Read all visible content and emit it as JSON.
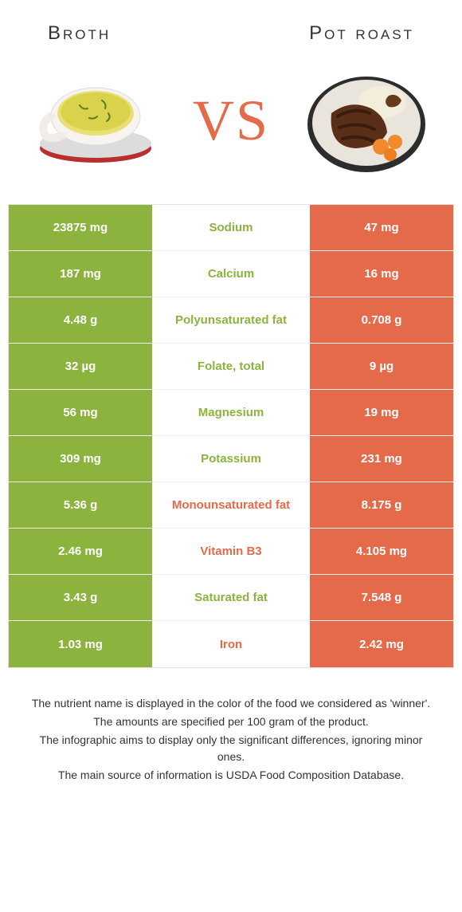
{
  "colors": {
    "left": "#8bb33d",
    "right": "#e46a4a",
    "vs": "#e46a4a",
    "row_border": "#f0f0f0",
    "table_border": "#e3e3e3",
    "text_dark": "#333333"
  },
  "header": {
    "left_title": "Broth",
    "right_title": "Pot roast",
    "vs_label": "VS"
  },
  "nutrients": [
    {
      "label": "Sodium",
      "left": "23875 mg",
      "right": "47 mg",
      "winner": "left"
    },
    {
      "label": "Calcium",
      "left": "187 mg",
      "right": "16 mg",
      "winner": "left"
    },
    {
      "label": "Polyunsaturated fat",
      "left": "4.48 g",
      "right": "0.708 g",
      "winner": "left"
    },
    {
      "label": "Folate, total",
      "left": "32 µg",
      "right": "9 µg",
      "winner": "left"
    },
    {
      "label": "Magnesium",
      "left": "56 mg",
      "right": "19 mg",
      "winner": "left"
    },
    {
      "label": "Potassium",
      "left": "309 mg",
      "right": "231 mg",
      "winner": "left"
    },
    {
      "label": "Monounsaturated fat",
      "left": "5.36 g",
      "right": "8.175 g",
      "winner": "right"
    },
    {
      "label": "Vitamin B3",
      "left": "2.46 mg",
      "right": "4.105 mg",
      "winner": "right"
    },
    {
      "label": "Saturated fat",
      "left": "3.43 g",
      "right": "7.548 g",
      "winner": "left"
    },
    {
      "label": "Iron",
      "left": "1.03 mg",
      "right": "2.42 mg",
      "winner": "right"
    }
  ],
  "footer_lines": [
    "The nutrient name is displayed in the color of the food we considered as 'winner'.",
    "The amounts are specified per 100 gram of the product.",
    "The infographic aims to display only the significant differences, ignoring minor ones.",
    "The main source of information is USDA Food Composition Database."
  ]
}
